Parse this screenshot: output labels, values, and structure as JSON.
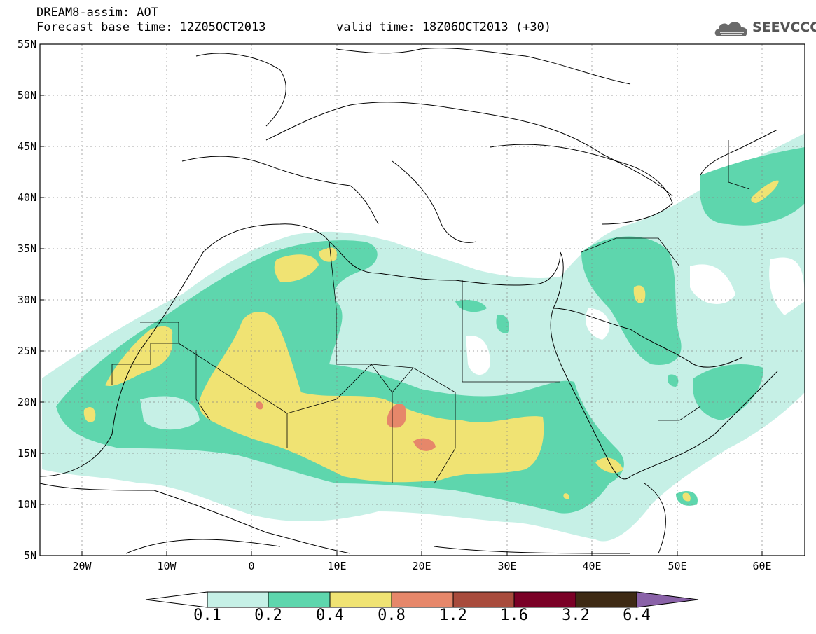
{
  "title": {
    "line1": "DREAM8-assim: AOT",
    "line2": "Forecast base time: 12Z05OCT2013",
    "valid": "valid time: 18Z06OCT2013 (+30)"
  },
  "logo": {
    "text": "SEEVCCC",
    "icon": "cloud-logo-icon"
  },
  "axes": {
    "lat_labels": [
      "55N",
      "50N",
      "45N",
      "40N",
      "35N",
      "30N",
      "25N",
      "20N",
      "15N",
      "10N",
      "5N"
    ],
    "lon_labels": [
      "20W",
      "10W",
      "0",
      "10E",
      "20E",
      "30E",
      "40E",
      "50E",
      "60E"
    ]
  },
  "colorbar": {
    "labels": [
      "0.1",
      "0.2",
      "0.4",
      "0.8",
      "1.2",
      "1.6",
      "3.2",
      "6.4"
    ],
    "colors": [
      "#ffffff",
      "#c6f0e6",
      "#5ed6ad",
      "#f0e373",
      "#e6876a",
      "#a84b3c",
      "#7a0026",
      "#3e2a14",
      "#8a62a8"
    ]
  },
  "chart_data": {
    "type": "heatmap",
    "title": "DREAM8-assim: AOT",
    "xlabel": "",
    "ylabel": "",
    "xlim": [
      -25,
      65
    ],
    "ylim": [
      5,
      55
    ],
    "levels": [
      0.1,
      0.2,
      0.4,
      0.8,
      1.2,
      1.6,
      3.2,
      6.4
    ],
    "grid": true
  }
}
